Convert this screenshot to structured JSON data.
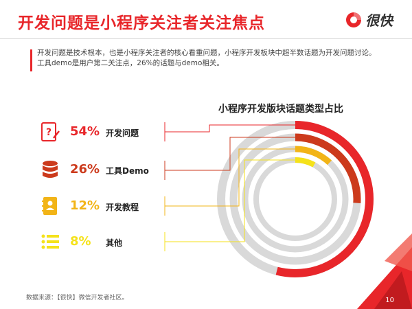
{
  "header": {
    "title": "开发问题是小程序关注者关注焦点",
    "logo_text": "很快"
  },
  "description": "开发问题是技术根本，也是小程序关注者的核心看重问题，小程序开发板块中超半数话题为开发问题讨论。工具demo是用户第二关注点，26%的话题与demo相关。",
  "colors": {
    "accent": "#e8262a",
    "series": [
      "#e8262a",
      "#cc3a1c",
      "#f2b417",
      "#f5e21a"
    ],
    "track": "#d9d9d9"
  },
  "chart_data": {
    "type": "pie",
    "style": "concentric-ring",
    "title": "小程序开发版块话题类型占比",
    "categories": [
      "开发问题",
      "工具Demo",
      "开发教程",
      "其他"
    ],
    "percent_labels": [
      "54%",
      "26%",
      "12%",
      "8%"
    ],
    "values": [
      54,
      26,
      12,
      8
    ],
    "icons": [
      "question-doc-icon",
      "database-icon",
      "notebook-icon",
      "list-icon"
    ],
    "legend": "left"
  },
  "footer": {
    "source": "数据来源：【很快】微信开发者社区。",
    "page_number": "10"
  }
}
